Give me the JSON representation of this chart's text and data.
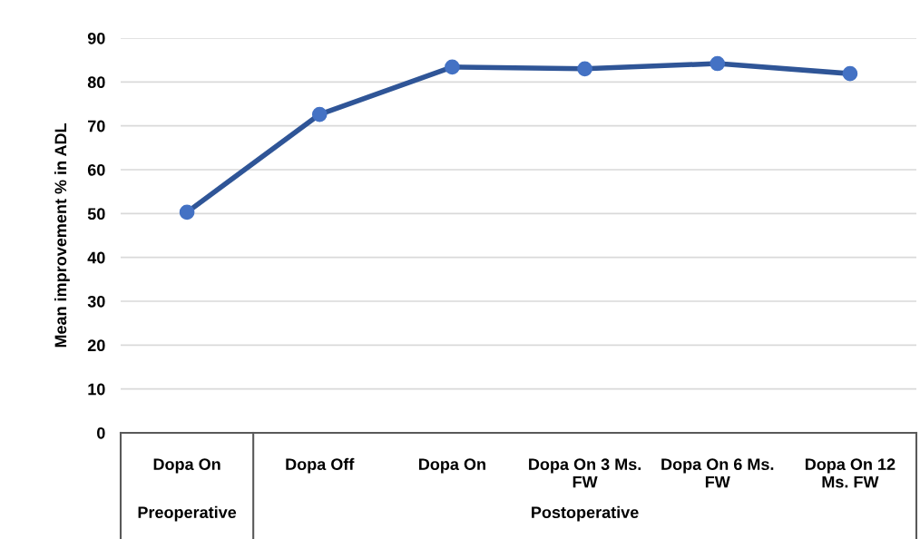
{
  "chart_data": {
    "type": "line",
    "ylabel": "Mean improvement % in ADL",
    "categories": [
      "Dopa On",
      "Dopa Off",
      "Dopa On",
      "Dopa On 3 Ms.\nFW",
      "Dopa On 6 Ms.\nFW",
      "Dopa On 12\nMs. FW"
    ],
    "series": [
      {
        "color": "#2f5597",
        "colors": [
          "#4472c4",
          "#4472c4",
          "#4472c4",
          "#4472c4",
          "#4472c4",
          "#4472c4"
        ],
        "values": [
          50.3,
          72.6,
          83.4,
          83.0,
          84.2,
          81.9
        ]
      }
    ],
    "annotations": [
      "Preoperative",
      "Postoperative"
    ],
    "ylim": [
      0,
      90
    ],
    "yticks": [
      0,
      10,
      20,
      30,
      40,
      50,
      60,
      70,
      80,
      90
    ],
    "grid": "y",
    "marker": "circle",
    "line_style": "solid",
    "legend": false
  }
}
